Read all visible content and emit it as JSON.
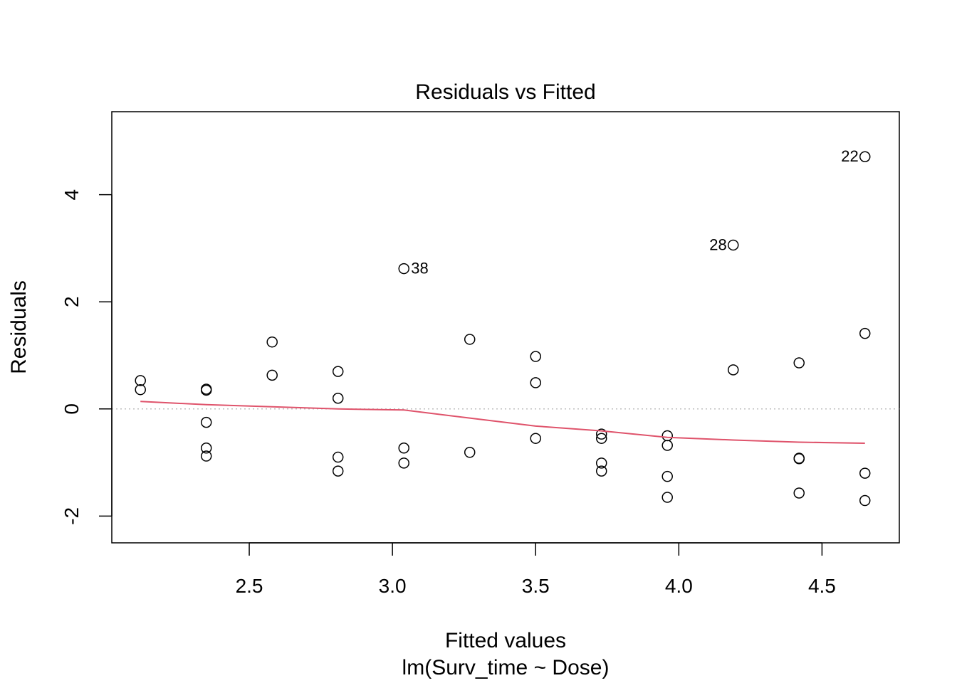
{
  "chart_data": {
    "type": "scatter",
    "title": "Residuals vs Fitted",
    "xlabel": "Fitted values",
    "subtitle": "lm(Surv_time ~ Dose)",
    "ylabel": "Residuals",
    "xlim": [
      2.02,
      4.77
    ],
    "ylim": [
      -2.5,
      5.55
    ],
    "x_ticks": [
      2.5,
      3.0,
      3.5,
      4.0,
      4.5
    ],
    "x_tick_labels": [
      "2.5",
      "3.0",
      "3.5",
      "4.0",
      "4.5"
    ],
    "y_ticks": [
      -2,
      0,
      2,
      4
    ],
    "y_tick_labels": [
      "-2",
      "0",
      "2",
      "4"
    ],
    "grid": false,
    "reference_line": {
      "y": 0,
      "style": "dotted",
      "color": "#BEBEBE"
    },
    "points": [
      {
        "x": 2.12,
        "y": 0.53
      },
      {
        "x": 2.12,
        "y": 0.36
      },
      {
        "x": 2.35,
        "y": 0.37
      },
      {
        "x": 2.35,
        "y": 0.35
      },
      {
        "x": 2.35,
        "y": -0.25
      },
      {
        "x": 2.35,
        "y": -0.73
      },
      {
        "x": 2.35,
        "y": -0.88
      },
      {
        "x": 2.58,
        "y": 1.25
      },
      {
        "x": 2.58,
        "y": 0.63
      },
      {
        "x": 2.81,
        "y": 0.7
      },
      {
        "x": 2.81,
        "y": 0.2
      },
      {
        "x": 2.81,
        "y": -0.9
      },
      {
        "x": 2.81,
        "y": -1.16
      },
      {
        "x": 3.04,
        "y": 2.62,
        "label": "38"
      },
      {
        "x": 3.04,
        "y": -0.73
      },
      {
        "x": 3.04,
        "y": -1.01
      },
      {
        "x": 3.27,
        "y": 1.3
      },
      {
        "x": 3.27,
        "y": -0.81
      },
      {
        "x": 3.5,
        "y": 0.98
      },
      {
        "x": 3.5,
        "y": 0.49
      },
      {
        "x": 3.5,
        "y": -0.55
      },
      {
        "x": 3.73,
        "y": -0.47
      },
      {
        "x": 3.73,
        "y": -0.55
      },
      {
        "x": 3.73,
        "y": -1.01
      },
      {
        "x": 3.73,
        "y": -1.16
      },
      {
        "x": 3.96,
        "y": -0.5
      },
      {
        "x": 3.96,
        "y": -0.68
      },
      {
        "x": 3.96,
        "y": -1.26
      },
      {
        "x": 3.96,
        "y": -1.65
      },
      {
        "x": 4.19,
        "y": 3.06,
        "label": "28"
      },
      {
        "x": 4.19,
        "y": 0.73
      },
      {
        "x": 4.42,
        "y": 0.86
      },
      {
        "x": 4.42,
        "y": -0.92
      },
      {
        "x": 4.42,
        "y": -0.93
      },
      {
        "x": 4.42,
        "y": -1.57
      },
      {
        "x": 4.65,
        "y": 4.71,
        "label": "22"
      },
      {
        "x": 4.65,
        "y": 1.41
      },
      {
        "x": 4.65,
        "y": -1.2
      },
      {
        "x": 4.65,
        "y": -1.71
      }
    ],
    "smoother": {
      "color": "#DF536B",
      "x": [
        2.12,
        2.35,
        2.58,
        2.81,
        3.04,
        3.27,
        3.5,
        3.73,
        3.96,
        4.19,
        4.42,
        4.65
      ],
      "y": [
        0.14,
        0.08,
        0.04,
        0.0,
        -0.02,
        -0.17,
        -0.32,
        -0.41,
        -0.53,
        -0.58,
        -0.62,
        -0.64
      ]
    }
  }
}
